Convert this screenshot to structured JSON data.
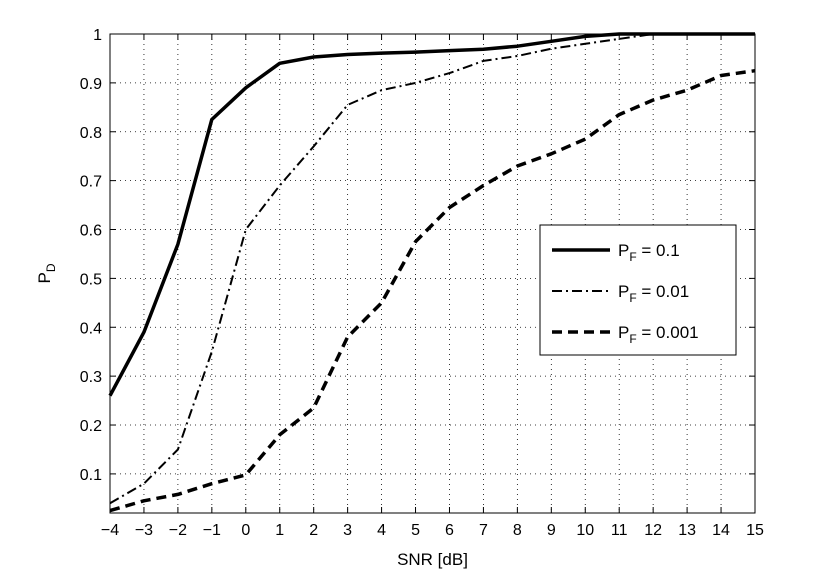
{
  "chart_data": {
    "type": "line",
    "title": "",
    "xlabel": "SNR [dB]",
    "ylabel_main": "P",
    "ylabel_sub": "D",
    "xlim": [
      -4,
      15
    ],
    "ylim": [
      0.02,
      1.0
    ],
    "xticks": [
      "−4",
      "−3",
      "−2",
      "−1",
      "0",
      "1",
      "2",
      "3",
      "4",
      "5",
      "6",
      "7",
      "8",
      "9",
      "10",
      "11",
      "12",
      "13",
      "14",
      "15"
    ],
    "yticks": [
      "0.1",
      "0.2",
      "0.3",
      "0.4",
      "0.5",
      "0.6",
      "0.7",
      "0.8",
      "0.9",
      "1"
    ],
    "grid": true,
    "legend_position": "right",
    "x": [
      -4,
      -3,
      -2,
      -1,
      0,
      1,
      2,
      3,
      4,
      5,
      6,
      7,
      8,
      9,
      10,
      11,
      12,
      13,
      14,
      15
    ],
    "series": [
      {
        "name_main": "P",
        "name_sub": "F",
        "name_rest": " = 0.1",
        "line_style": "solid",
        "values": [
          0.26,
          0.39,
          0.57,
          0.825,
          0.89,
          0.94,
          0.953,
          0.958,
          0.961,
          0.963,
          0.966,
          0.969,
          0.975,
          0.985,
          0.995,
          1.0,
          1.0,
          1.0,
          1.0,
          1.0
        ]
      },
      {
        "name_main": "P",
        "name_sub": "F",
        "name_rest": " = 0.01",
        "line_style": "dashdot",
        "values": [
          0.04,
          0.08,
          0.15,
          0.35,
          0.6,
          0.69,
          0.77,
          0.855,
          0.885,
          0.9,
          0.92,
          0.945,
          0.955,
          0.97,
          0.98,
          0.99,
          1.0,
          1.0,
          1.0,
          1.0
        ]
      },
      {
        "name_main": "P",
        "name_sub": "F",
        "name_rest": " = 0.001",
        "line_style": "dashed",
        "values": [
          0.025,
          0.045,
          0.058,
          0.08,
          0.098,
          0.18,
          0.235,
          0.38,
          0.45,
          0.575,
          0.645,
          0.69,
          0.73,
          0.755,
          0.785,
          0.835,
          0.865,
          0.885,
          0.915,
          0.925
        ]
      }
    ]
  }
}
